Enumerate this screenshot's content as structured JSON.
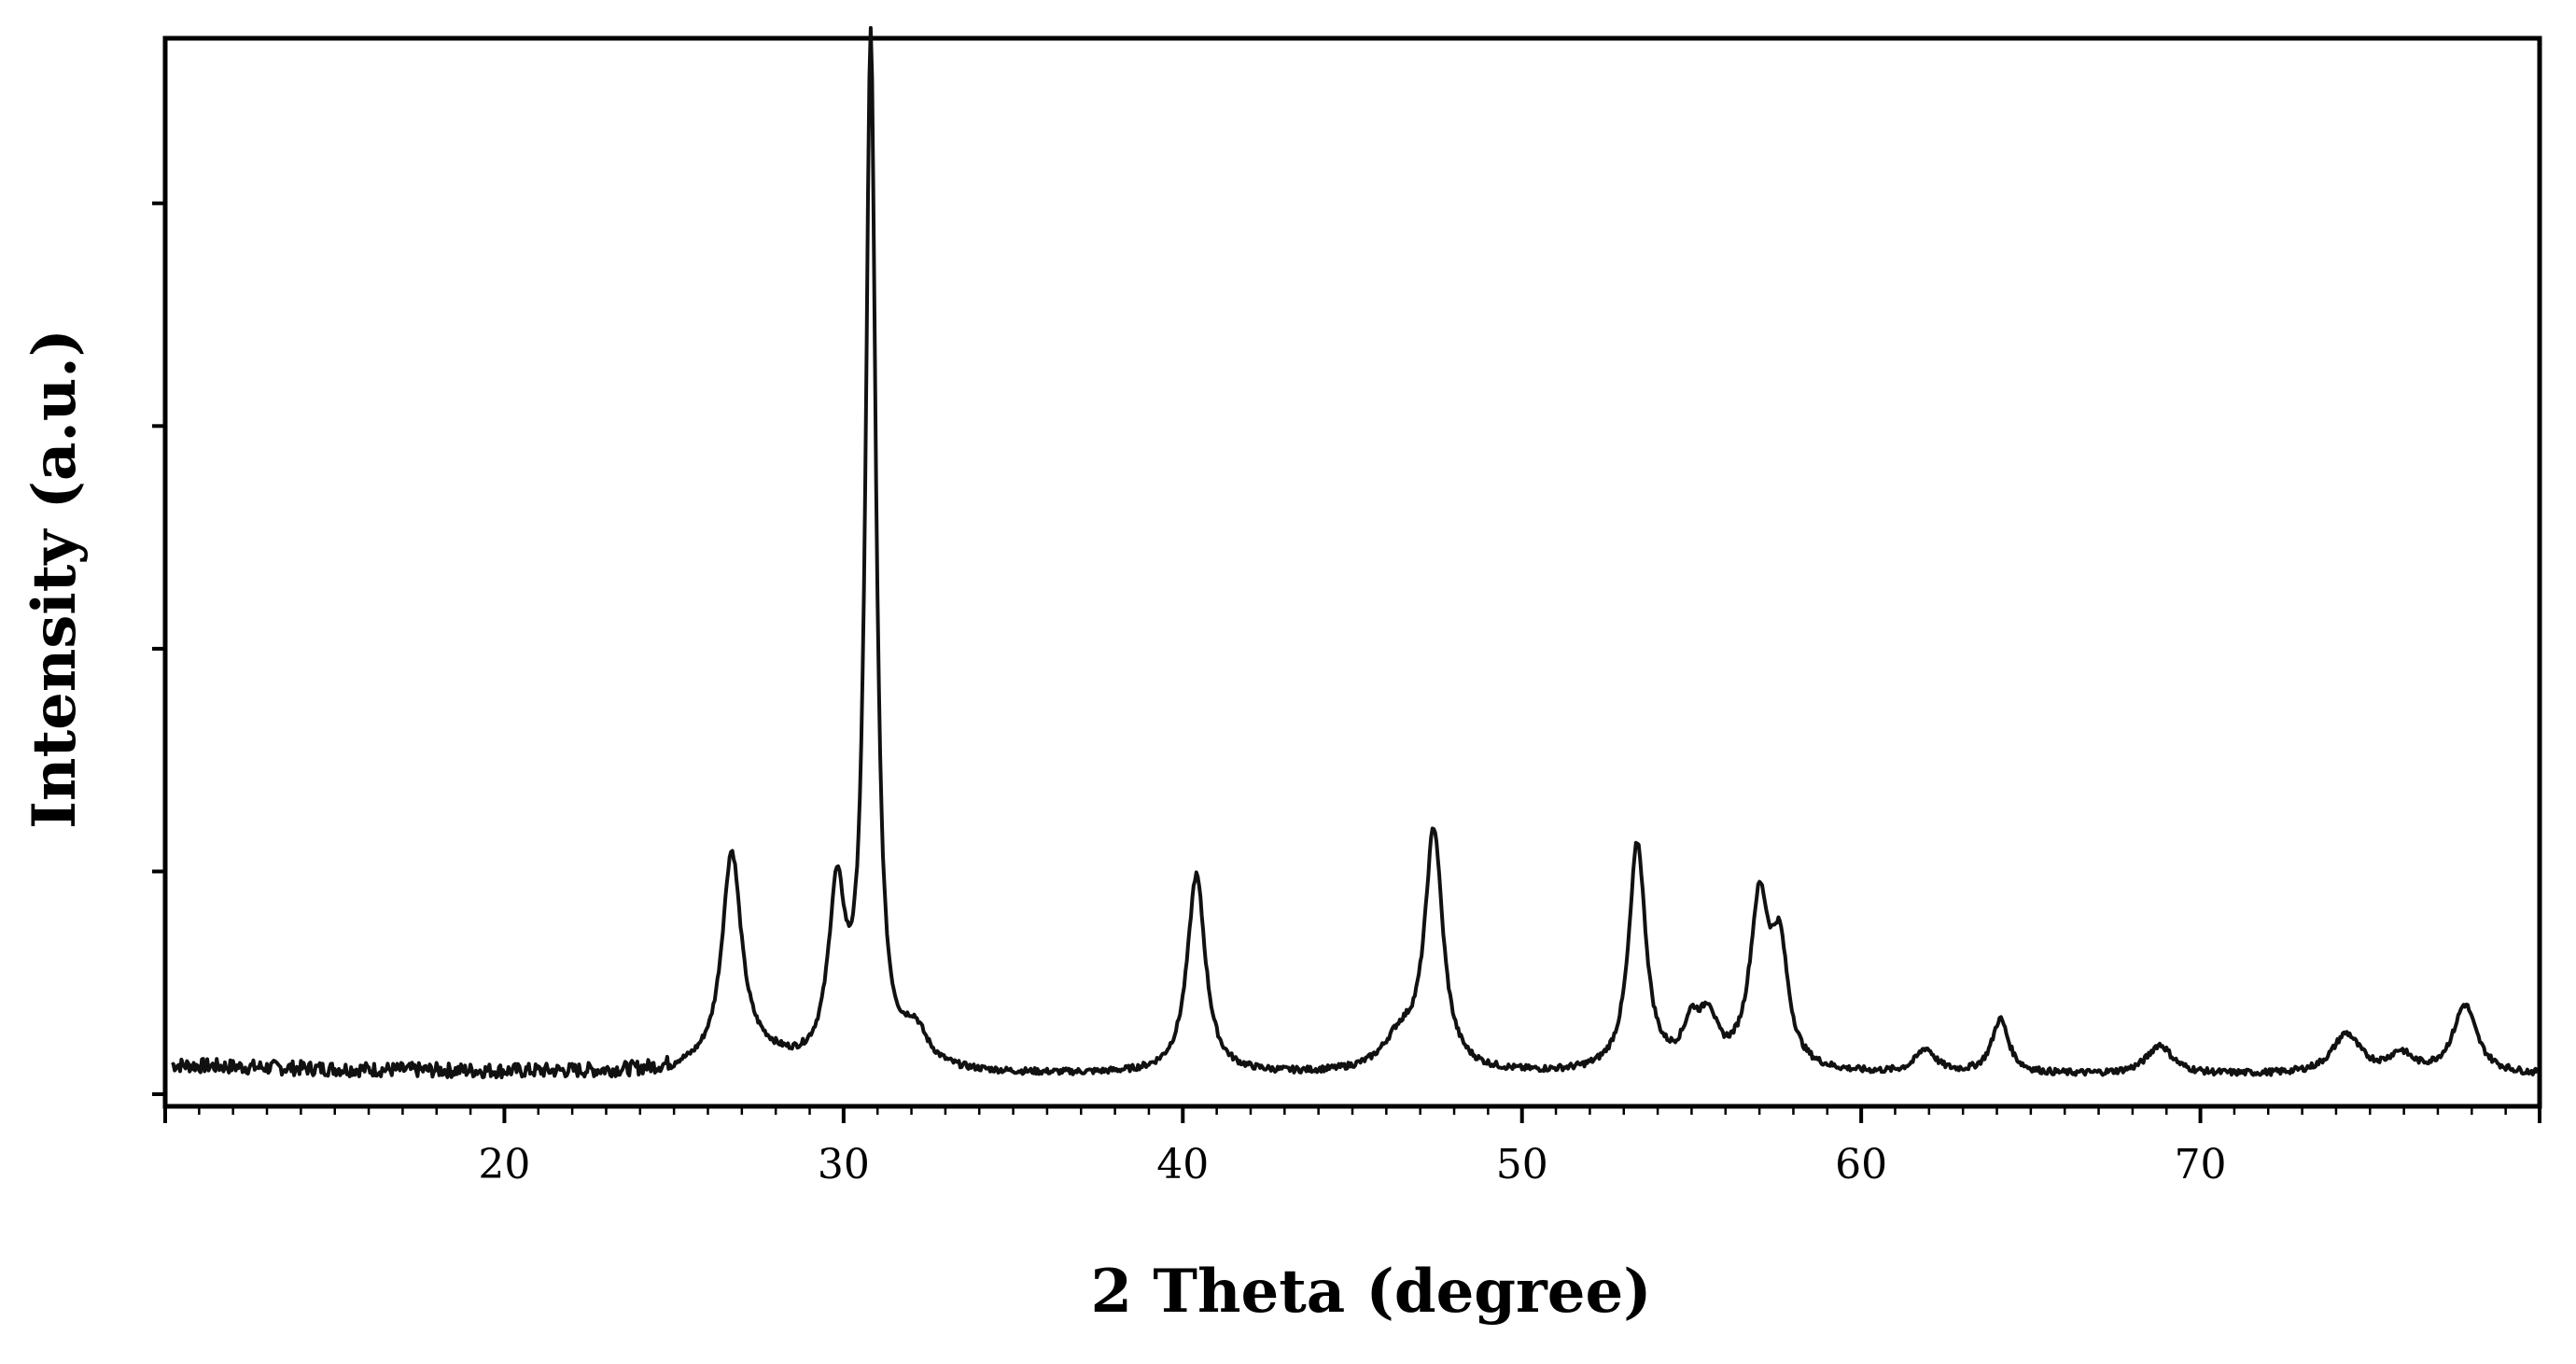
{
  "chart_data": {
    "type": "line",
    "title": "",
    "xlabel": "2 Theta (degree)",
    "ylabel": "Intensity (a.u.)",
    "xlim": [
      10,
      80
    ],
    "ylim": [
      0,
      100
    ],
    "x_ticks": [
      20,
      30,
      40,
      50,
      60,
      70
    ],
    "x_tick_labels": [
      "20",
      "30",
      "40",
      "50",
      "60",
      "70"
    ],
    "y_ticks": [
      0,
      21.3,
      42.6,
      63.9,
      85.2
    ],
    "y_tick_labels": [],
    "grid": false,
    "legend": "none",
    "line_color": "#111111",
    "baseline": 1.8,
    "peaks": [
      {
        "x": 26.7,
        "height": 20.5,
        "width": 0.35
      },
      {
        "x": 27.6,
        "height": 1.2,
        "width": 0.9
      },
      {
        "x": 29.8,
        "height": 16.2,
        "width": 0.3
      },
      {
        "x": 30.8,
        "height": 98.0,
        "width": 0.18
      },
      {
        "x": 32.1,
        "height": 3.4,
        "width": 0.45
      },
      {
        "x": 40.4,
        "height": 19.0,
        "width": 0.32
      },
      {
        "x": 46.4,
        "height": 3.0,
        "width": 0.6
      },
      {
        "x": 47.4,
        "height": 22.8,
        "width": 0.32
      },
      {
        "x": 53.4,
        "height": 21.8,
        "width": 0.3
      },
      {
        "x": 55.0,
        "height": 4.0,
        "width": 0.3
      },
      {
        "x": 55.5,
        "height": 4.5,
        "width": 0.3
      },
      {
        "x": 57.0,
        "height": 15.8,
        "width": 0.34
      },
      {
        "x": 57.6,
        "height": 10.5,
        "width": 0.3
      },
      {
        "x": 61.9,
        "height": 2.3,
        "width": 0.35
      },
      {
        "x": 64.1,
        "height": 5.2,
        "width": 0.3
      },
      {
        "x": 68.8,
        "height": 2.8,
        "width": 0.45
      },
      {
        "x": 74.3,
        "height": 3.8,
        "width": 0.5
      },
      {
        "x": 75.9,
        "height": 1.8,
        "width": 0.4
      },
      {
        "x": 77.8,
        "height": 6.6,
        "width": 0.42
      }
    ]
  }
}
